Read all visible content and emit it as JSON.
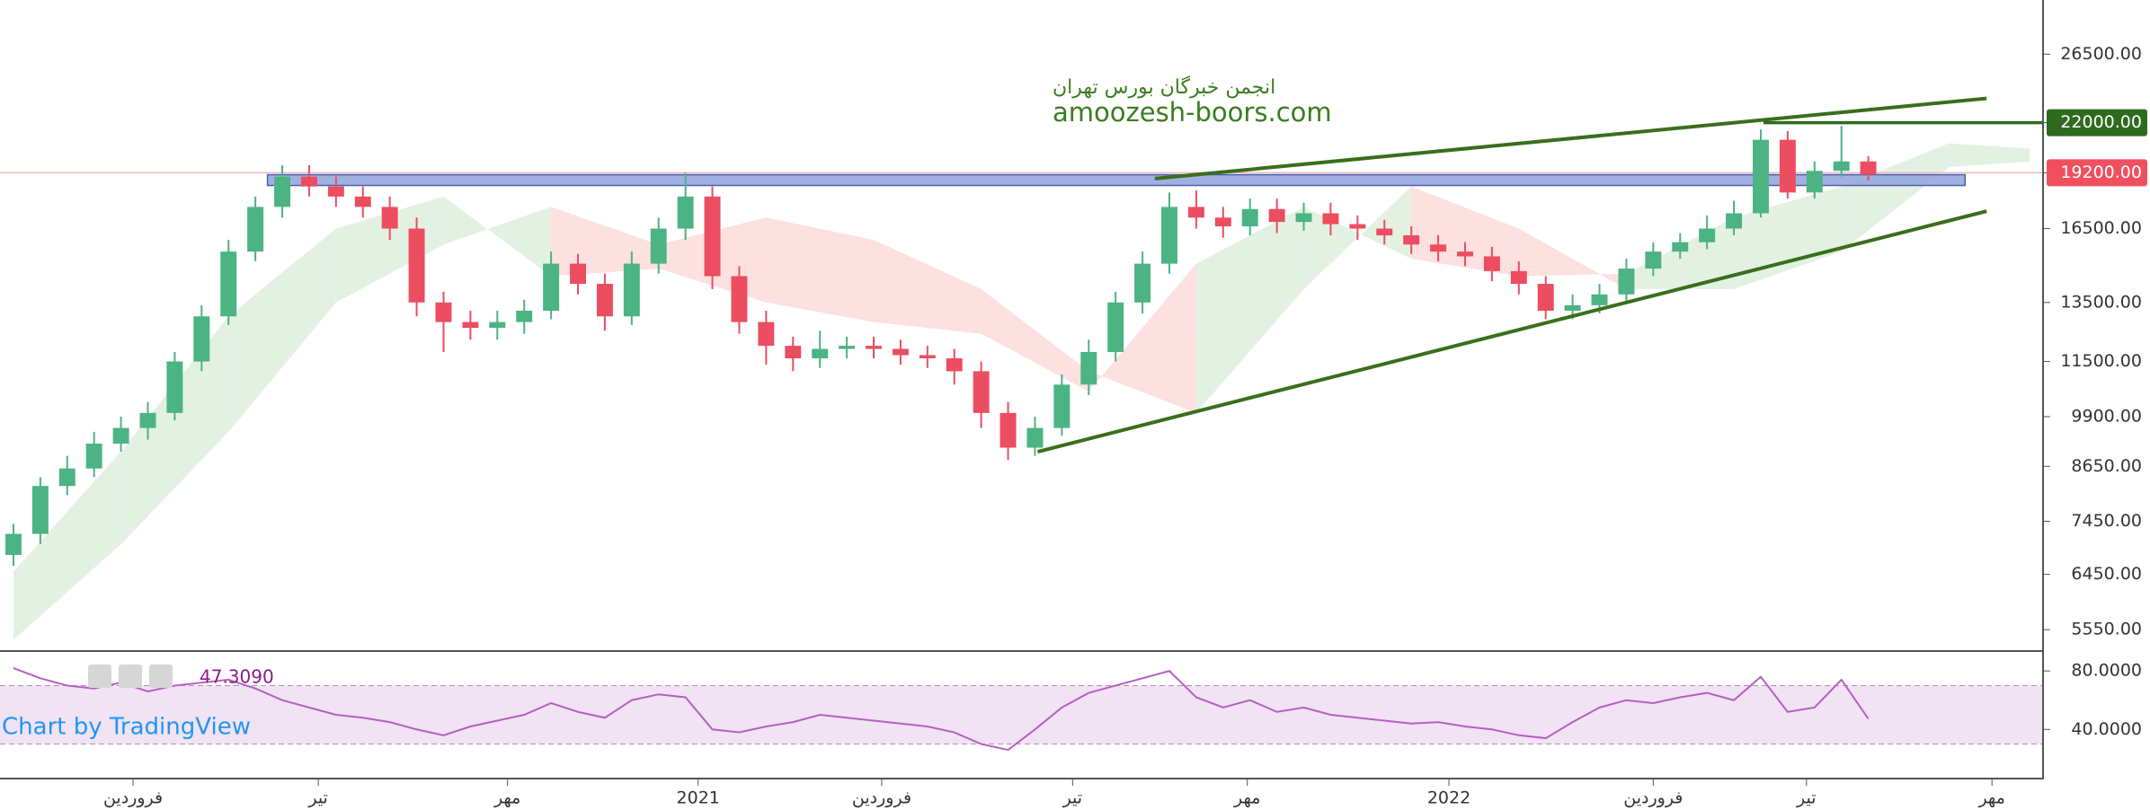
{
  "chart_data": [
    {
      "type": "candlestick",
      "watermark": [
        "انجمن خبرگان بورس تهران",
        "amoozesh-boors.com"
      ],
      "open": [
        6800,
        7200,
        8200,
        8600,
        9200,
        9600,
        10000,
        11500,
        13000,
        15500,
        17500,
        19000,
        18500,
        18000,
        17500,
        16500,
        13500,
        12800,
        12600,
        12800,
        13200,
        15000,
        14200,
        13000,
        15000,
        16500,
        18000,
        14500,
        12800,
        12000,
        11600,
        11900,
        12000,
        11900,
        11700,
        11600,
        11200,
        10000,
        9100,
        9600,
        10800,
        11800,
        13500,
        15000,
        17500,
        17000,
        16600,
        17400,
        16800,
        17200,
        16700,
        16500,
        16200,
        15800,
        15500,
        15300,
        14700,
        14200,
        13200,
        13400,
        13800,
        14800,
        15500,
        15900,
        16500,
        17200,
        21000,
        18200,
        19300,
        19800
      ],
      "high": [
        7400,
        8400,
        8900,
        9500,
        9900,
        10300,
        11800,
        13400,
        16000,
        18000,
        19600,
        19600,
        19000,
        18500,
        18000,
        17000,
        13900,
        13200,
        13200,
        13600,
        15500,
        15400,
        14600,
        15500,
        17000,
        19200,
        18500,
        14900,
        13200,
        12300,
        12500,
        12300,
        12300,
        12200,
        12000,
        11900,
        11500,
        10300,
        9900,
        11100,
        12200,
        13900,
        15500,
        18200,
        18300,
        17500,
        17900,
        17900,
        17700,
        17700,
        17100,
        16900,
        16600,
        16200,
        15900,
        15700,
        15100,
        14500,
        13800,
        14200,
        15200,
        15900,
        16300,
        17100,
        17800,
        21600,
        21500,
        19800,
        21800,
        20100
      ],
      "low": [
        6600,
        7000,
        8000,
        8400,
        9000,
        9300,
        9800,
        11200,
        12700,
        15100,
        17000,
        18000,
        17500,
        17000,
        16000,
        13000,
        11800,
        12200,
        12200,
        12400,
        12900,
        13800,
        12500,
        12700,
        14600,
        16000,
        14000,
        12400,
        11400,
        11200,
        11300,
        11600,
        11600,
        11400,
        11300,
        10800,
        9600,
        8800,
        8900,
        9400,
        10500,
        11500,
        13100,
        14600,
        16500,
        16100,
        16200,
        16300,
        16400,
        16200,
        16000,
        15800,
        15400,
        15100,
        14900,
        14300,
        13800,
        12900,
        12900,
        13100,
        13500,
        14500,
        15200,
        15600,
        16200,
        17000,
        17900,
        17900,
        19000,
        18800
      ],
      "close": [
        7200,
        8200,
        8600,
        9200,
        9600,
        10000,
        11500,
        13000,
        15500,
        17500,
        19000,
        18500,
        18000,
        17500,
        16500,
        13500,
        12800,
        12600,
        12800,
        13200,
        15000,
        14200,
        13000,
        15000,
        16500,
        18000,
        14500,
        12800,
        12000,
        11600,
        11900,
        12000,
        11900,
        11700,
        11600,
        11200,
        10000,
        9100,
        9600,
        10800,
        11800,
        13500,
        15000,
        17500,
        17000,
        16600,
        17400,
        16800,
        17200,
        16700,
        16500,
        16200,
        15800,
        15500,
        15300,
        14700,
        14200,
        13200,
        13400,
        13800,
        14800,
        15500,
        15900,
        16500,
        17200,
        21000,
        18200,
        19300,
        19800,
        19100
      ],
      "up_color": "#4cb383",
      "down_color": "#ec4d60",
      "xlim": [
        -0.5,
        75.5
      ],
      "ylim": [
        5250,
        30700
      ],
      "log_scale": true,
      "yticks": [
        {
          "value": 26500,
          "label": "26500.00"
        },
        {
          "value": 22000,
          "label": "22000.00",
          "highlight": "#2e6b1e"
        },
        {
          "value": 19200,
          "label": "19200.00",
          "highlight": "#f0505e"
        },
        {
          "value": 16500,
          "label": "16500.00"
        },
        {
          "value": 13500,
          "label": "13500.00"
        },
        {
          "value": 11500,
          "label": "11500.00"
        },
        {
          "value": 9900,
          "label": "9900.00"
        },
        {
          "value": 8650,
          "label": "8650.00"
        },
        {
          "value": 7450,
          "label": "7450.00"
        },
        {
          "value": 6450,
          "label": "6450.00"
        },
        {
          "value": 5550,
          "label": "5550.00"
        }
      ],
      "cloud": {
        "x": [
          0,
          4,
          8,
          12,
          16,
          20,
          24,
          28,
          32,
          36,
          40,
          44,
          48,
          52,
          56,
          60,
          64,
          68,
          72,
          75
        ],
        "span_a": [
          6500,
          9000,
          13000,
          16500,
          18000,
          14500,
          14800,
          13500,
          12800,
          12400,
          10600,
          15000,
          17500,
          15200,
          14500,
          14600,
          17000,
          18500,
          20800,
          20500
        ],
        "span_b": [
          5400,
          7000,
          9500,
          13500,
          15800,
          17500,
          15800,
          17000,
          16000,
          14000,
          11200,
          10000,
          14000,
          18500,
          16500,
          14000,
          14000,
          15500,
          19500,
          19800
        ],
        "up_color": "#e3f1e3",
        "down_color": "#fde0e0"
      },
      "trendlines": [
        {
          "x": [
            42.46,
            73.4
          ],
          "y": [
            18900,
            23500
          ],
          "color": "#3a6e1c"
        },
        {
          "x": [
            38.1,
            73.4
          ],
          "y": [
            9000,
            17300
          ],
          "color": "#3a6e1c"
        }
      ],
      "hline": {
        "x": 65.1,
        "y": 22000,
        "color": "#2e6b1e"
      },
      "zone": {
        "x": [
          9.45,
          72.6
        ],
        "y": [
          18550,
          19100
        ],
        "color": "#8fa3dc"
      },
      "price_line": {
        "y": 19200,
        "color": "#f5b5ba"
      }
    },
    {
      "type": "line",
      "series": [
        {
          "color": "#b55fc2",
          "values": [
            82,
            75,
            70,
            68,
            72,
            66,
            70,
            72,
            74,
            68,
            60,
            55,
            50,
            48,
            45,
            40,
            36,
            42,
            46,
            50,
            58,
            52,
            48,
            60,
            64,
            62,
            40,
            38,
            42,
            45,
            50,
            48,
            46,
            44,
            42,
            38,
            30,
            26,
            40,
            55,
            65,
            70,
            75,
            80,
            62,
            55,
            60,
            52,
            55,
            50,
            48,
            46,
            44,
            45,
            42,
            40,
            36,
            34,
            45,
            55,
            60,
            58,
            62,
            65,
            60,
            76,
            52,
            55,
            74,
            47.309
          ]
        }
      ],
      "legend_value": {
        "value": 47.309,
        "label": "47.3090"
      },
      "attribution": "Chart by TradingView",
      "ylim": [
        7,
        93
      ],
      "yticks": [
        {
          "value": 80,
          "label": "80.0000"
        },
        {
          "value": 40,
          "label": "40.0000"
        }
      ],
      "band": [
        30,
        70
      ],
      "band_color": "#f1e3f3",
      "xlim": [
        -0.5,
        75.5
      ],
      "xticks": [
        {
          "value": 4.45,
          "label": "فروردین"
        },
        {
          "value": 11.34,
          "label": "تیر"
        },
        {
          "value": 18.38,
          "label": "مهر"
        },
        {
          "value": 25.47,
          "label": "2021"
        },
        {
          "value": 32.3,
          "label": "فروردین"
        },
        {
          "value": 39.4,
          "label": "تیر"
        },
        {
          "value": 45.9,
          "label": "مهر"
        },
        {
          "value": 53.4,
          "label": "2022"
        },
        {
          "value": 61.0,
          "label": "فروردین"
        },
        {
          "value": 66.7,
          "label": "تیر"
        },
        {
          "value": 73.6,
          "label": "مهر"
        }
      ]
    }
  ]
}
